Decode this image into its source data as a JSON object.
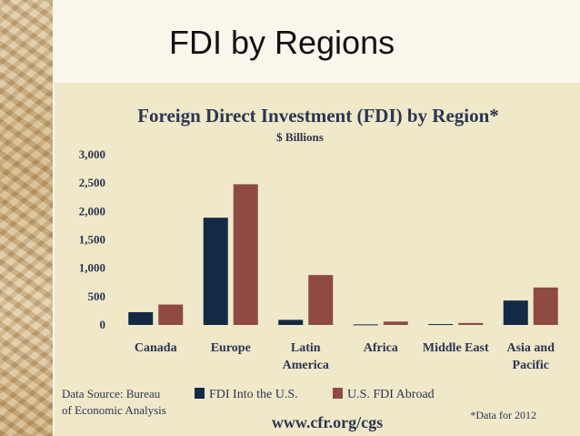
{
  "slide": {
    "title": "FDI by Regions"
  },
  "colors": {
    "into_us": "#122a45",
    "abroad": "#8f4a44",
    "panel": "#efe8c9",
    "text": "#2c3550"
  },
  "chart_data": {
    "type": "bar",
    "title": "Foreign Direct Investment (FDI) by Region*",
    "subtitle": "$ Billions",
    "categories": [
      [
        "Canada"
      ],
      [
        "Europe"
      ],
      [
        "Latin",
        "America"
      ],
      [
        "Africa"
      ],
      [
        "Middle East"
      ],
      [
        "Asia and",
        "Pacific"
      ]
    ],
    "series": [
      {
        "name": "FDI Into the U.S.",
        "values": [
          225,
          1890,
          90,
          10,
          15,
          430
        ]
      },
      {
        "name": "U.S. FDI Abroad",
        "values": [
          360,
          2480,
          880,
          60,
          35,
          660
        ]
      }
    ],
    "y_ticks": [
      "0",
      "500",
      "1,000",
      "1,500",
      "2,000",
      "2,500",
      "3,000"
    ],
    "ylim": [
      0,
      3000
    ],
    "grid": false,
    "legend_position": "bottom"
  },
  "footer": {
    "source": [
      "Data Source: Bureau",
      "of Economic Analysis"
    ],
    "url": "www.cfr.org/cgs",
    "note": "*Data for 2012"
  }
}
